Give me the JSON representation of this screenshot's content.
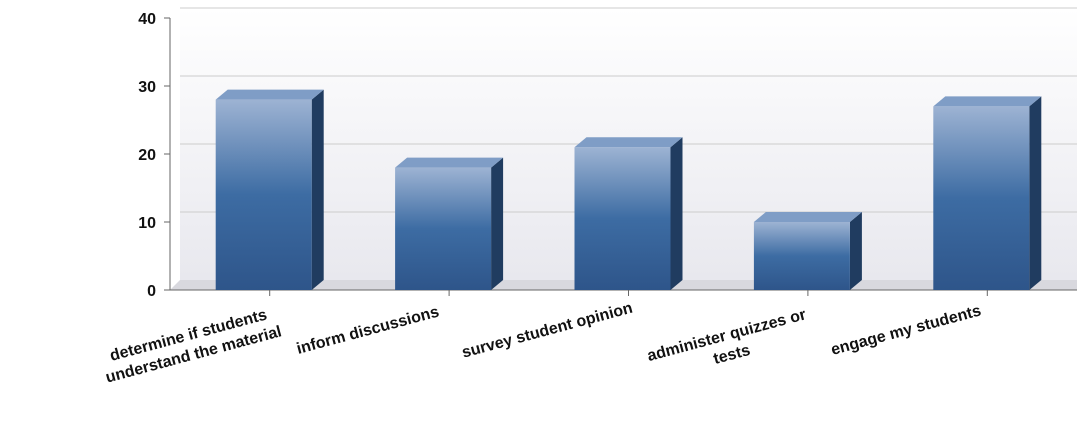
{
  "chart_data": {
    "type": "bar",
    "categories": [
      "determine if students understand the material",
      "inform discussions",
      "survey student opinion",
      "administer quizzes or tests",
      "engage my students"
    ],
    "values": [
      28,
      18,
      21,
      10,
      27
    ],
    "color": "#3b6aa0",
    "ylim": [
      0,
      40
    ],
    "yticks": [
      0,
      10,
      20,
      30,
      40
    ],
    "grid": true
  }
}
